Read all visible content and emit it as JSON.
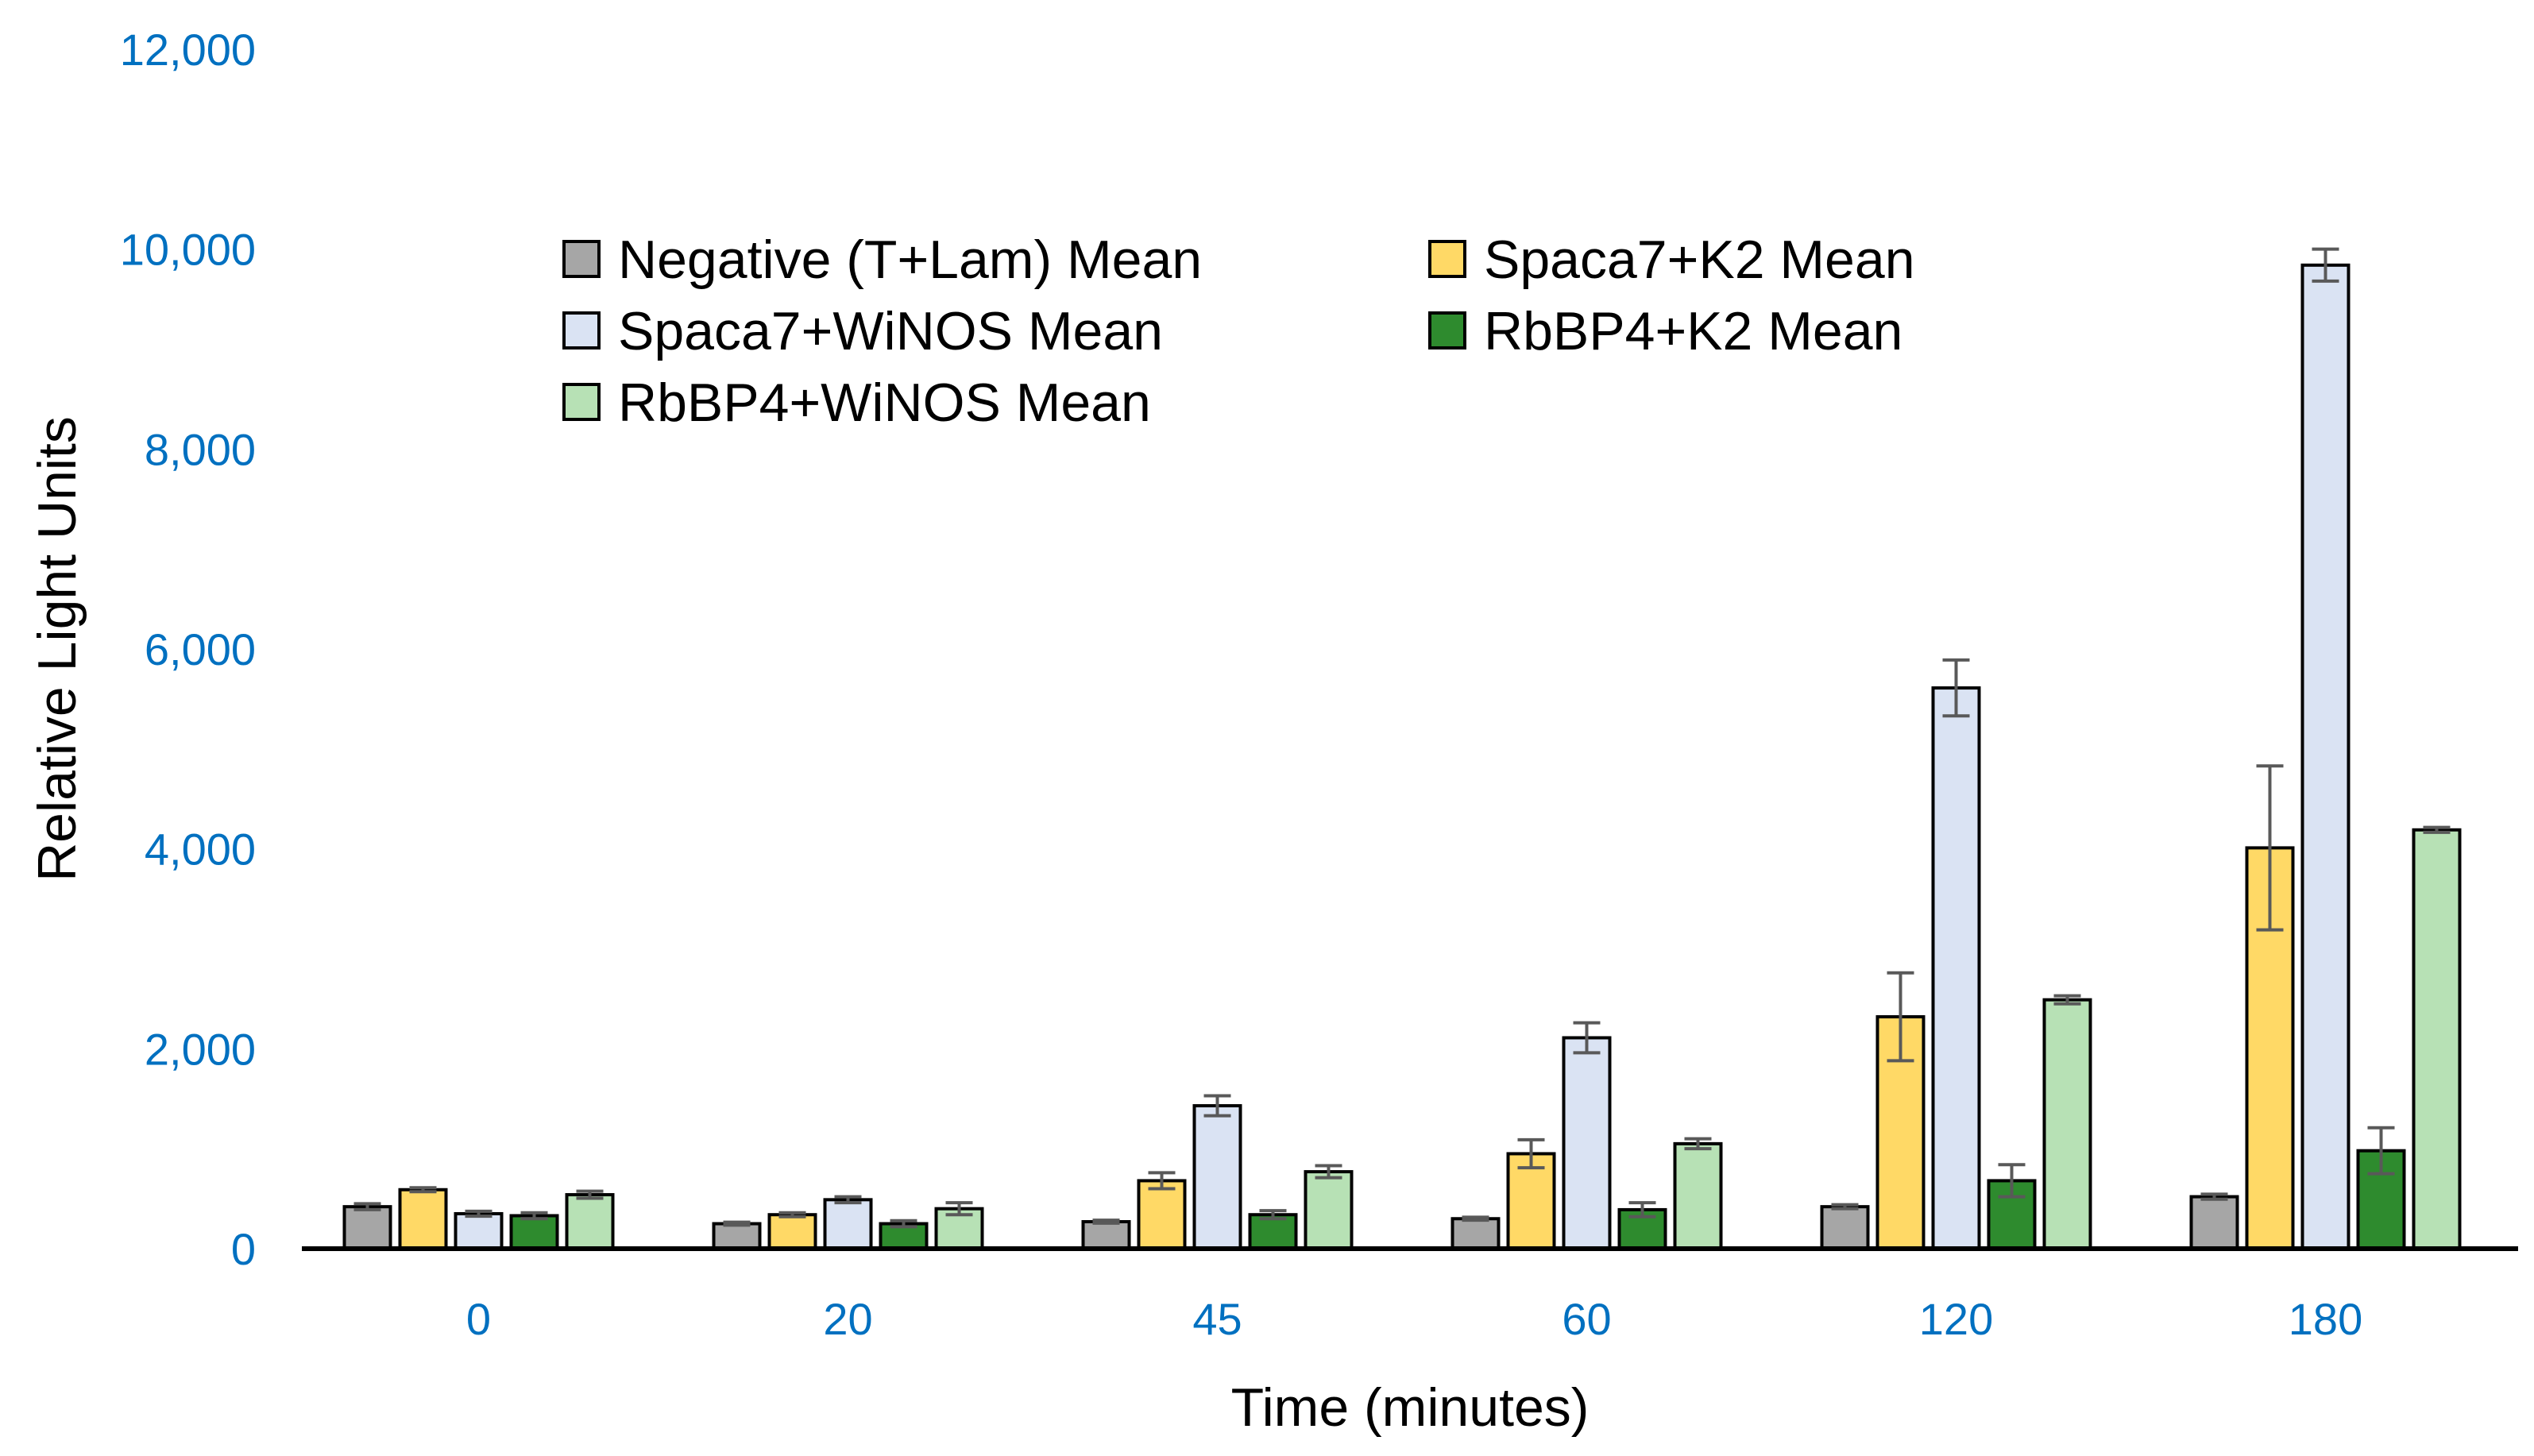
{
  "chart_data": {
    "type": "bar",
    "title": "",
    "xlabel": "Time (minutes)",
    "ylabel": "Relative Light Units",
    "ylim": [
      0,
      12000
    ],
    "yticks": [
      0,
      2000,
      4000,
      6000,
      8000,
      10000,
      12000
    ],
    "ytick_labels": [
      "0",
      "2,000",
      "4,000",
      "6,000",
      "8,000",
      "10,000",
      "12,000"
    ],
    "categories": [
      "0",
      "20",
      "45",
      "60",
      "120",
      "180"
    ],
    "grid": false,
    "legend_position": "top-center",
    "error_bars": true,
    "series": [
      {
        "name": "Negative (T+Lam) Mean",
        "color": "#A6A6A6",
        "values": [
          420,
          250,
          270,
          300,
          420,
          520
        ],
        "errors": [
          30,
          15,
          15,
          15,
          20,
          25
        ]
      },
      {
        "name": "Spaca7+K2 Mean",
        "color": "#FFD966",
        "values": [
          590,
          340,
          680,
          950,
          2320,
          4010
        ],
        "errors": [
          20,
          20,
          80,
          140,
          440,
          820
        ]
      },
      {
        "name": "Spaca7+WiNOS Mean",
        "color": "#DAE3F3",
        "values": [
          350,
          490,
          1430,
          2110,
          5610,
          9840
        ],
        "errors": [
          25,
          30,
          100,
          150,
          280,
          160
        ]
      },
      {
        "name": "RbBP4+K2 Mean",
        "color": "#2E8B2E",
        "values": [
          330,
          250,
          340,
          390,
          680,
          980
        ],
        "errors": [
          30,
          30,
          40,
          70,
          160,
          230
        ]
      },
      {
        "name": "RbBP4+WiNOS Mean",
        "color": "#B7E1B5",
        "values": [
          540,
          400,
          770,
          1050,
          2490,
          4190
        ],
        "errors": [
          35,
          60,
          60,
          50,
          40,
          25
        ]
      }
    ]
  }
}
